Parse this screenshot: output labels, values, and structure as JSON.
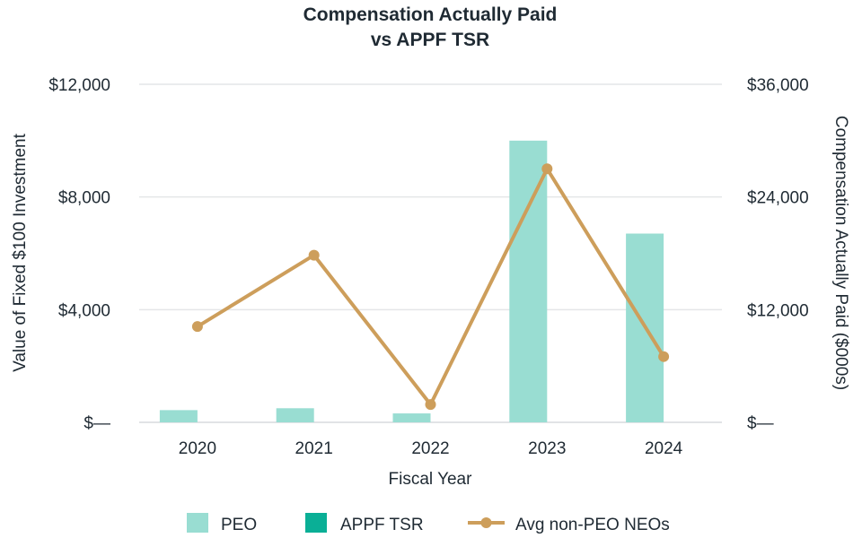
{
  "chart_data": {
    "type": "bar",
    "title": "Compensation Actually Paid",
    "subtitle": "vs APPF TSR",
    "xlabel": "Fiscal Year",
    "ylabel_left": "Value of Fixed $100 Investment",
    "ylabel_right": "Compensation Actually Paid ($000s)",
    "categories": [
      "2020",
      "2021",
      "2022",
      "2023",
      "2024"
    ],
    "ylim_left": [
      0,
      12000
    ],
    "ylim_right": [
      0,
      36000
    ],
    "left_ticks": [
      "$—",
      "$4,000",
      "$8,000",
      "$12,000"
    ],
    "left_tick_values": [
      0,
      4000,
      8000,
      12000
    ],
    "right_ticks": [
      "$—",
      "$12,000",
      "$24,000",
      "$36,000"
    ],
    "right_tick_values": [
      0,
      12000,
      24000,
      36000
    ],
    "grid": true,
    "legend_position": "bottom",
    "series": [
      {
        "name": "PEO",
        "kind": "bar",
        "axis": "right",
        "color": "#99ddd2",
        "values": [
          1300,
          1500,
          950,
          30000,
          20100
        ]
      },
      {
        "name": "APPF TSR",
        "kind": "bar",
        "axis": "left",
        "color": "#0aaf96",
        "values": [
          null,
          null,
          null,
          null,
          null
        ]
      },
      {
        "name": "Avg non-PEO NEOs",
        "kind": "line",
        "axis": "right",
        "color": "#cd9e5b",
        "values": [
          10200,
          17800,
          1900,
          27000,
          7000
        ]
      }
    ]
  }
}
